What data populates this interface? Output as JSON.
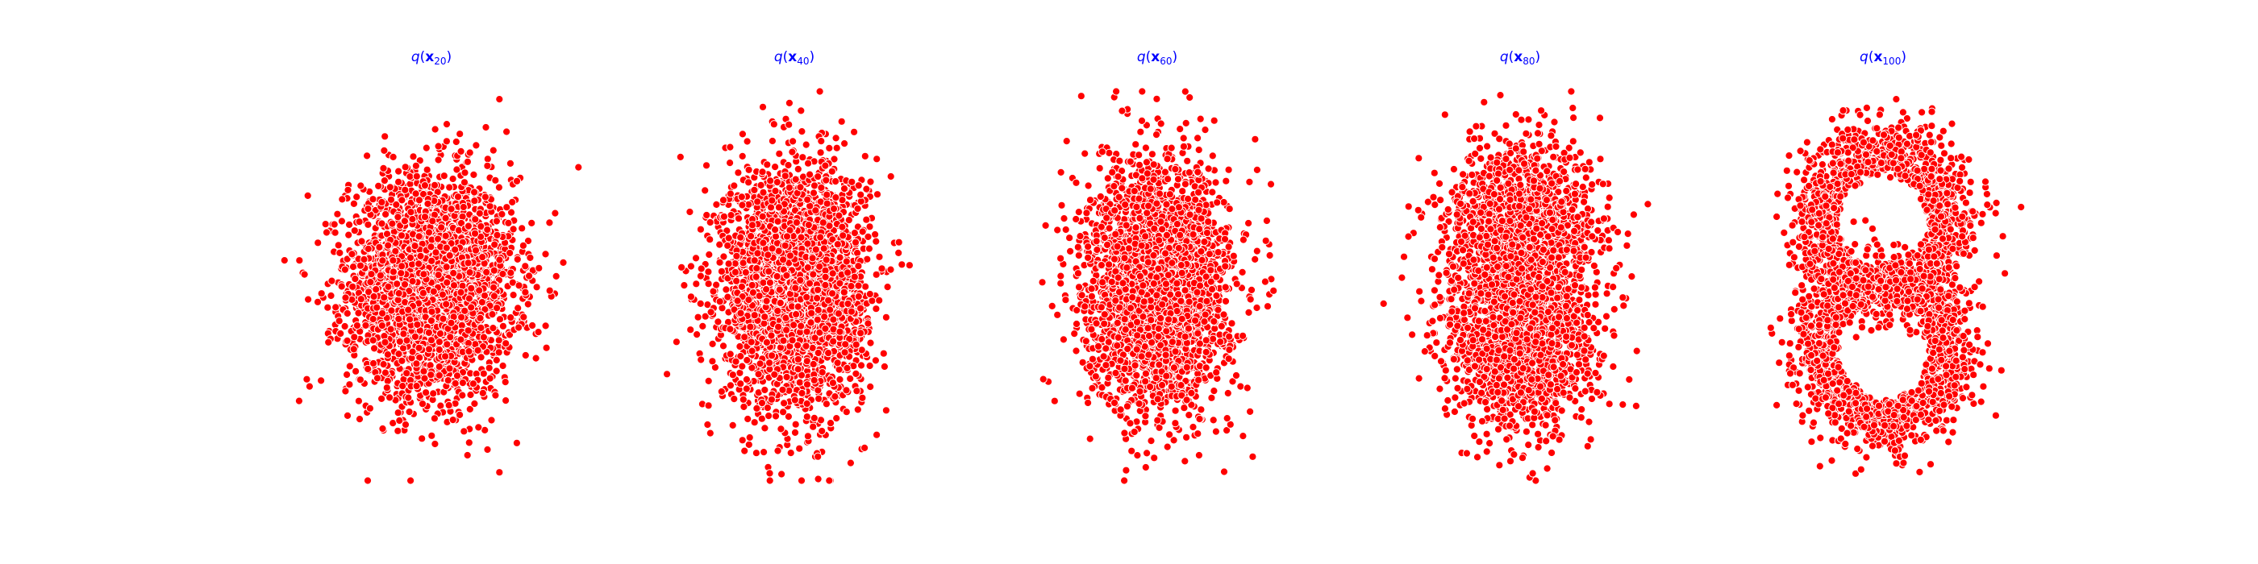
{
  "figure": {
    "marker_color": "#ff0000",
    "marker_edge_color": "#ffffff",
    "title_color": "#0000ff",
    "background": "#ffffff"
  },
  "panels": [
    {
      "title": {
        "fn": "q",
        "var": "x",
        "sub": "20"
      }
    },
    {
      "title": {
        "fn": "q",
        "var": "x",
        "sub": "40"
      }
    },
    {
      "title": {
        "fn": "q",
        "var": "x",
        "sub": "60"
      }
    },
    {
      "title": {
        "fn": "q",
        "var": "x",
        "sub": "80"
      }
    },
    {
      "title": {
        "fn": "q",
        "var": "x",
        "sub": "100"
      }
    }
  ],
  "chart_data": [
    {
      "type": "scatter",
      "title": "q(x20)",
      "axes_visible": false,
      "grid": false,
      "n_points": 3000,
      "xlim": [
        -1.5,
        1.5
      ],
      "ylim": [
        -1.5,
        1.5
      ],
      "distribution": "diffuse gaussian blob"
    },
    {
      "type": "scatter",
      "title": "q(x40)",
      "axes_visible": false,
      "grid": false,
      "n_points": 3000,
      "xlim": [
        -1.5,
        1.5
      ],
      "ylim": [
        -1.5,
        1.5
      ],
      "distribution": "diffuse vertical blob"
    },
    {
      "type": "scatter",
      "title": "q(x60)",
      "axes_visible": false,
      "grid": false,
      "n_points": 3000,
      "xlim": [
        -1.5,
        1.5
      ],
      "ylim": [
        -1.5,
        1.5
      ],
      "distribution": "diffuse vertical blob"
    },
    {
      "type": "scatter",
      "title": "q(x80)",
      "axes_visible": false,
      "grid": false,
      "n_points": 3000,
      "xlim": [
        -1.5,
        1.5
      ],
      "ylim": [
        -1.5,
        1.5
      ],
      "distribution": "emerging two-lobe shape"
    },
    {
      "type": "scatter",
      "title": "q(x100)",
      "axes_visible": false,
      "grid": false,
      "n_points": 3000,
      "xlim": [
        -1.5,
        1.5
      ],
      "ylim": [
        -1.5,
        1.5
      ],
      "distribution": "figure-eight (digit 8) shape with two holes"
    }
  ]
}
